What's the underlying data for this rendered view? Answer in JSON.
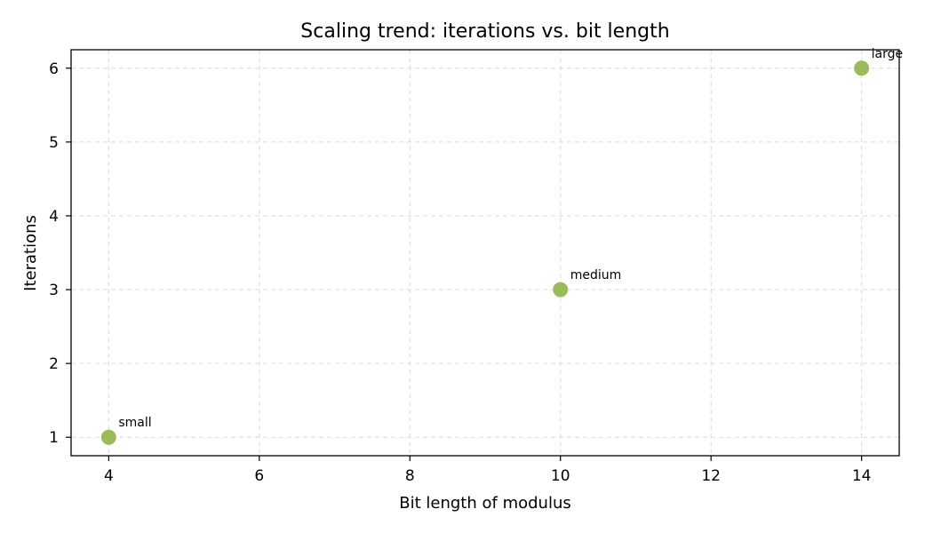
{
  "chart_data": {
    "type": "scatter",
    "title": "Scaling trend: iterations vs. bit length",
    "xlabel": "Bit length of modulus",
    "ylabel": "Iterations",
    "xlim": [
      3.5,
      14.5
    ],
    "ylim": [
      0.75,
      6.25
    ],
    "xticks": [
      4,
      6,
      8,
      10,
      12,
      14
    ],
    "yticks": [
      1,
      2,
      3,
      4,
      5,
      6
    ],
    "grid": true,
    "point_color": "#9bbb59",
    "points": [
      {
        "x": 4,
        "y": 1,
        "label": "small"
      },
      {
        "x": 10,
        "y": 3,
        "label": "medium"
      },
      {
        "x": 14,
        "y": 6,
        "label": "large"
      }
    ]
  }
}
